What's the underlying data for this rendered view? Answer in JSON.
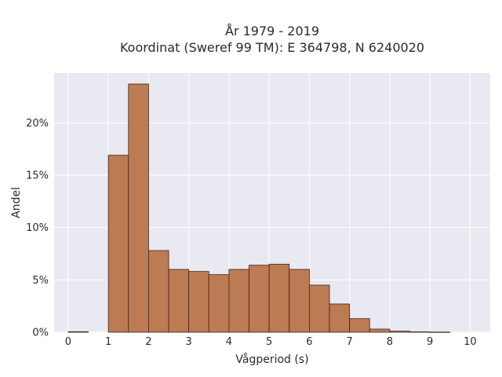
{
  "chart_data": {
    "type": "bar",
    "title_lines": [
      "År 1979 - 2019",
      "Koordinat (Sweref 99 TM): E 364798, N 6240020"
    ],
    "xlabel": "Vågperiod (s)",
    "ylabel": "Andel",
    "xlim": [
      -0.35,
      10.5
    ],
    "ylim": [
      0,
      0.2475
    ],
    "x_ticks": [
      0,
      1,
      2,
      3,
      4,
      5,
      6,
      7,
      8,
      9,
      10
    ],
    "y_ticks": [
      0,
      0.05,
      0.1,
      0.15,
      0.2
    ],
    "y_tick_labels": [
      "0%",
      "5%",
      "10%",
      "15%",
      "20%"
    ],
    "bin_width": 0.5,
    "bins": [
      {
        "start": 0.0,
        "value": 0.0005
      },
      {
        "start": 1.0,
        "value": 0.169
      },
      {
        "start": 1.5,
        "value": 0.237
      },
      {
        "start": 2.0,
        "value": 0.078
      },
      {
        "start": 2.5,
        "value": 0.06
      },
      {
        "start": 3.0,
        "value": 0.058
      },
      {
        "start": 3.5,
        "value": 0.055
      },
      {
        "start": 4.0,
        "value": 0.06
      },
      {
        "start": 4.5,
        "value": 0.064
      },
      {
        "start": 5.0,
        "value": 0.065
      },
      {
        "start": 5.5,
        "value": 0.06
      },
      {
        "start": 6.0,
        "value": 0.045
      },
      {
        "start": 6.5,
        "value": 0.027
      },
      {
        "start": 7.0,
        "value": 0.013
      },
      {
        "start": 7.5,
        "value": 0.003
      },
      {
        "start": 8.0,
        "value": 0.001
      },
      {
        "start": 8.5,
        "value": 0.0004
      },
      {
        "start": 9.0,
        "value": 0.0002
      }
    ],
    "grid": true,
    "colors": {
      "bar_fill": "#bd7b54",
      "bar_stroke": "#3a2418",
      "plot_bg": "#e9e9f2",
      "grid": "#ffffff"
    }
  }
}
